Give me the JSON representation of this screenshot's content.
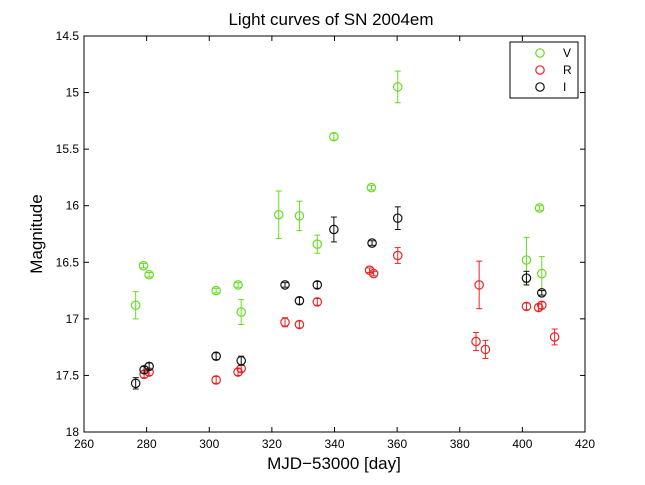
{
  "chart_data": {
    "type": "scatter",
    "title": "Light curves of SN 2004em",
    "xlabel": "MJD−53000 [day]",
    "ylabel": "Magnitude",
    "xlim": [
      260,
      420
    ],
    "ylim": [
      14.5,
      18
    ],
    "y_inverted": true,
    "grid": false,
    "legend_position": "top-right",
    "xticks": [
      260,
      280,
      300,
      320,
      340,
      360,
      380,
      400,
      420
    ],
    "xtick_labels": [
      "260",
      "280",
      "300",
      "320",
      "340",
      "360",
      "380",
      "400",
      "420"
    ],
    "yticks": [
      14.5,
      15,
      15.5,
      16,
      16.5,
      17,
      17.5,
      18
    ],
    "ytick_labels": [
      "14.5",
      "15",
      "15.5",
      "16",
      "16.5",
      "17",
      "17.5",
      "18"
    ],
    "series": [
      {
        "name": "V",
        "color": "#66dd22",
        "marker": "circle",
        "points": [
          {
            "x": 276.5,
            "y": 16.88,
            "err": 0.12
          },
          {
            "x": 279.0,
            "y": 16.53,
            "err": 0.02
          },
          {
            "x": 280.8,
            "y": 16.61,
            "err": 0.02
          },
          {
            "x": 302.2,
            "y": 16.75,
            "err": 0.02
          },
          {
            "x": 309.2,
            "y": 16.7,
            "err": 0.02
          },
          {
            "x": 310.2,
            "y": 16.94,
            "err": 0.11
          },
          {
            "x": 322.2,
            "y": 16.08,
            "err": 0.21
          },
          {
            "x": 328.8,
            "y": 16.09,
            "err": 0.13
          },
          {
            "x": 334.5,
            "y": 16.34,
            "err": 0.08
          },
          {
            "x": 339.8,
            "y": 15.39,
            "err": 0.03
          },
          {
            "x": 351.8,
            "y": 15.84,
            "err": 0.02
          },
          {
            "x": 360.2,
            "y": 14.95,
            "err": 0.14
          },
          {
            "x": 401.3,
            "y": 16.48,
            "err": 0.2
          },
          {
            "x": 405.5,
            "y": 16.02,
            "err": 0.02
          },
          {
            "x": 406.2,
            "y": 16.6,
            "err": 0.15
          }
        ]
      },
      {
        "name": "R",
        "color": "#ee2222",
        "marker": "circle",
        "points": [
          {
            "x": 279.2,
            "y": 17.49,
            "err": 0.03
          },
          {
            "x": 280.8,
            "y": 17.47,
            "err": 0.03
          },
          {
            "x": 302.2,
            "y": 17.54,
            "err": 0.03
          },
          {
            "x": 309.2,
            "y": 17.47,
            "err": 0.03
          },
          {
            "x": 310.2,
            "y": 17.44,
            "err": 0.03
          },
          {
            "x": 324.2,
            "y": 17.03,
            "err": 0.04
          },
          {
            "x": 328.8,
            "y": 17.05,
            "err": 0.03
          },
          {
            "x": 334.5,
            "y": 16.85,
            "err": 0.03
          },
          {
            "x": 351.2,
            "y": 16.57,
            "err": 0.02
          },
          {
            "x": 352.5,
            "y": 16.6,
            "err": 0.02
          },
          {
            "x": 360.2,
            "y": 16.44,
            "err": 0.07
          },
          {
            "x": 385.2,
            "y": 17.2,
            "err": 0.08
          },
          {
            "x": 386.2,
            "y": 16.7,
            "err": 0.21
          },
          {
            "x": 388.2,
            "y": 17.27,
            "err": 0.08
          },
          {
            "x": 401.3,
            "y": 16.89,
            "err": 0.03
          },
          {
            "x": 405.2,
            "y": 16.9,
            "err": 0.03
          },
          {
            "x": 406.2,
            "y": 16.88,
            "err": 0.03
          },
          {
            "x": 410.3,
            "y": 17.16,
            "err": 0.07
          }
        ]
      },
      {
        "name": "I",
        "color": "#111111",
        "marker": "circle",
        "points": [
          {
            "x": 276.5,
            "y": 17.57,
            "err": 0.05
          },
          {
            "x": 279.2,
            "y": 17.45,
            "err": 0.03
          },
          {
            "x": 280.8,
            "y": 17.42,
            "err": 0.03
          },
          {
            "x": 302.2,
            "y": 17.33,
            "err": 0.03
          },
          {
            "x": 310.2,
            "y": 17.37,
            "err": 0.04
          },
          {
            "x": 324.2,
            "y": 16.7,
            "err": 0.02
          },
          {
            "x": 328.8,
            "y": 16.84,
            "err": 0.03
          },
          {
            "x": 334.5,
            "y": 16.7,
            "err": 0.03
          },
          {
            "x": 339.8,
            "y": 16.21,
            "err": 0.11
          },
          {
            "x": 352.0,
            "y": 16.33,
            "err": 0.02
          },
          {
            "x": 360.2,
            "y": 16.11,
            "err": 0.1
          },
          {
            "x": 401.3,
            "y": 16.64,
            "err": 0.06
          },
          {
            "x": 406.2,
            "y": 16.77,
            "err": 0.02
          }
        ]
      }
    ]
  }
}
